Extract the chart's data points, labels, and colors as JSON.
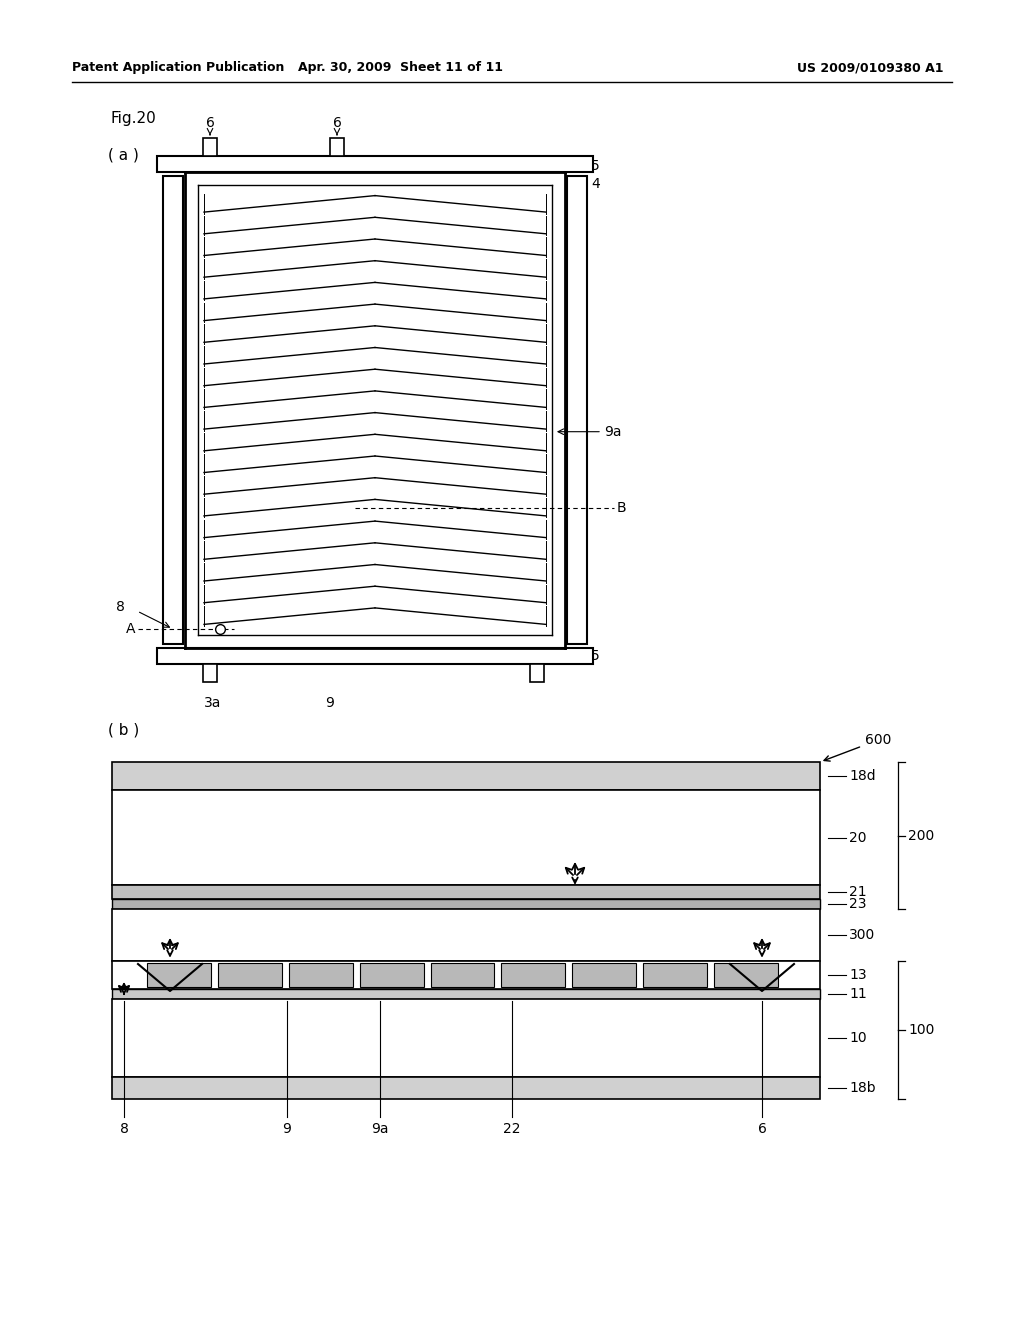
{
  "title_left": "Patent Application Publication",
  "title_mid": "Apr. 30, 2009  Sheet 11 of 11",
  "title_right": "US 2009/0109380 A1",
  "fig_label": "Fig.20",
  "sub_a": "( a )",
  "sub_b": "( b )",
  "bg_color": "#ffffff",
  "line_color": "#000000"
}
